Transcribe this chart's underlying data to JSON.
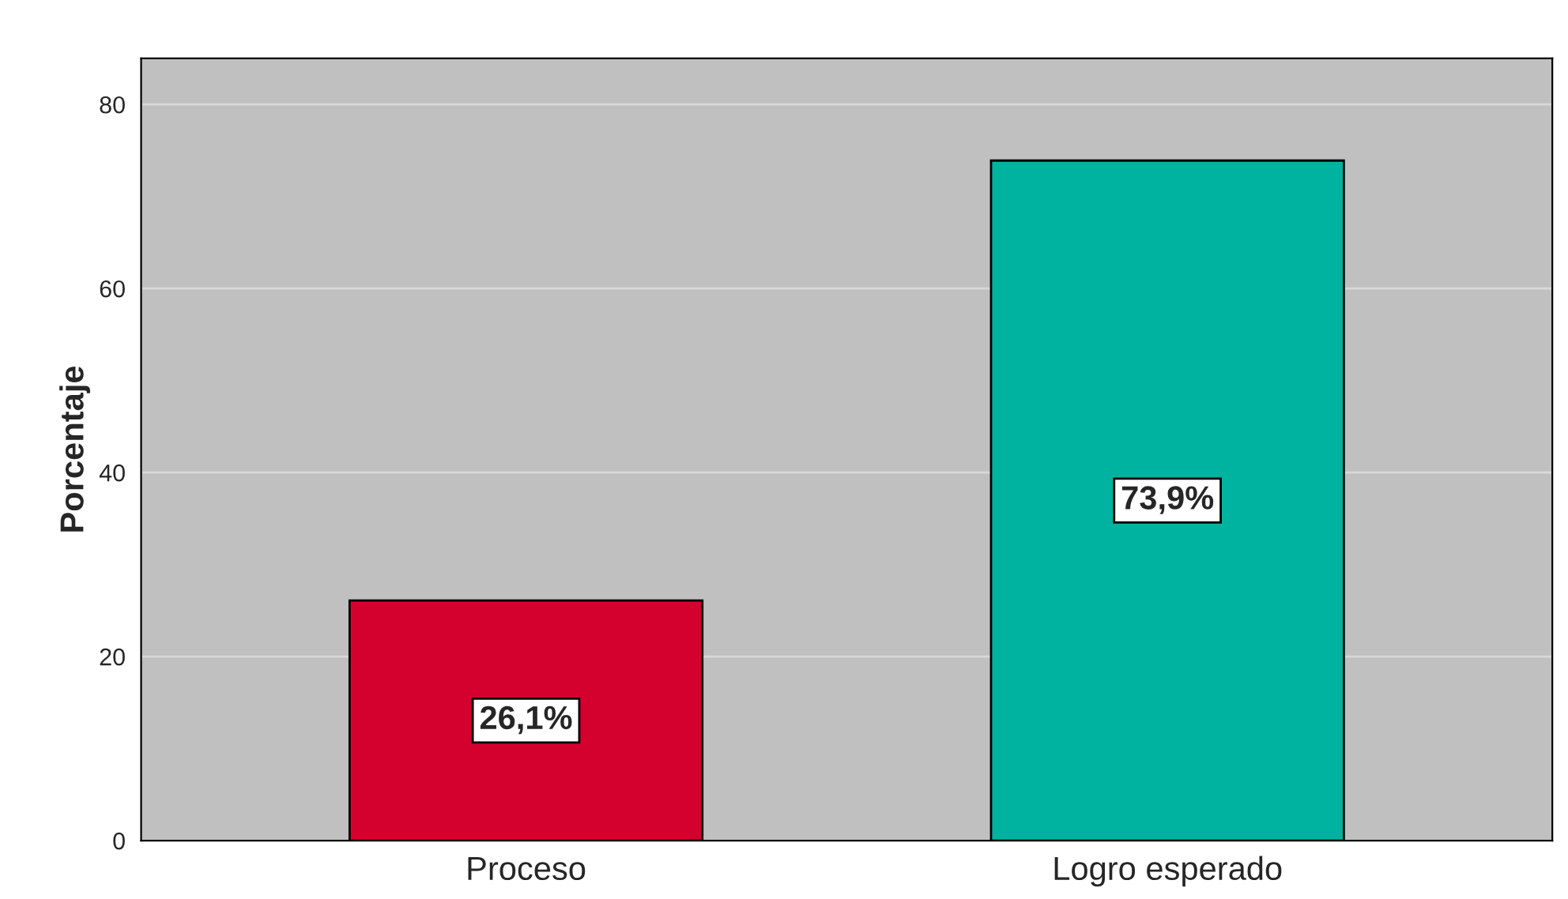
{
  "chart_data": {
    "type": "bar",
    "ylabel": "Porcentaje",
    "categories": [
      "Proceso",
      "Logro esperado"
    ],
    "values": [
      26.1,
      73.9
    ],
    "colors": [
      "#d4002e",
      "#00b3a0"
    ],
    "value_labels": [
      "26,1%",
      "73,9%"
    ],
    "ylim": [
      0,
      85
    ],
    "yticks": [
      0,
      20,
      40,
      60,
      80
    ],
    "grid": "y",
    "legend": false
  }
}
